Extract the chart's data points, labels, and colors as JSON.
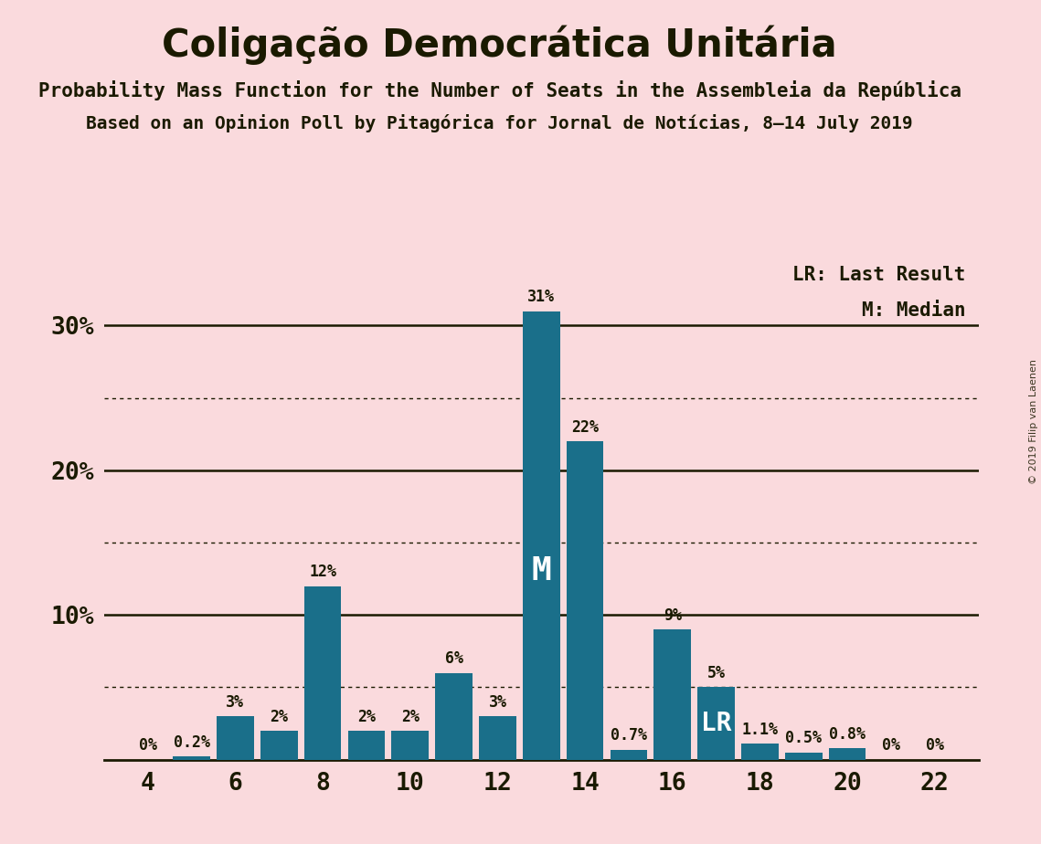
{
  "title": "Coligação Democrática Unitária",
  "subtitle1": "Probability Mass Function for the Number of Seats in the Assembleia da República",
  "subtitle2": "Based on an Opinion Poll by Pitagórica for Jornal de Notícias, 8–14 July 2019",
  "watermark": "© 2019 Filip van Laenen",
  "seats": [
    4,
    5,
    6,
    7,
    8,
    9,
    10,
    11,
    12,
    13,
    14,
    15,
    16,
    17,
    18,
    19,
    20,
    21,
    22
  ],
  "probs": [
    0.0,
    0.2,
    3.0,
    2.0,
    12.0,
    2.0,
    2.0,
    6.0,
    3.0,
    31.0,
    22.0,
    0.7,
    9.0,
    5.0,
    1.1,
    0.5,
    0.8,
    0.0,
    0.0
  ],
  "bar_color": "#1a6f8a",
  "background_color": "#fadadd",
  "text_color": "#1a1a00",
  "median_seat": 13,
  "last_result_seat": 17,
  "ylim": [
    0,
    35
  ],
  "solid_yticks": [
    10,
    20,
    30
  ],
  "dotted_yticks": [
    5,
    15,
    25
  ],
  "legend_lr": "LR: Last Result",
  "legend_m": "M: Median",
  "prob_labels": [
    "0%",
    "0.2%",
    "3%",
    "2%",
    "12%",
    "2%",
    "2%",
    "6%",
    "3%",
    "31%",
    "22%",
    "0.7%",
    "9%",
    "5%",
    "1.1%",
    "0.5%",
    "0.8%",
    "0%",
    "0%"
  ]
}
